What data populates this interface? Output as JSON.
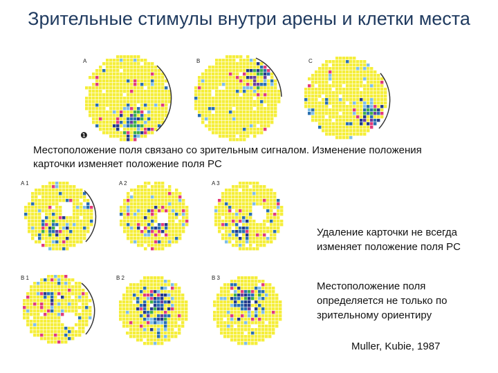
{
  "title": "Зрительные стимулы внутри арены и клетки места",
  "caption_top": "Местоположение поля связано со зрительным сигналом. Изменение положения карточки изменяет положение поля PC",
  "caption_removal": "Удаление карточки не всегда изменяет положение поля  PC",
  "caption_landmark": "Местоположение поля определяется не только по зрительному ориентиру",
  "reference": "Muller, Kubie, 1987",
  "colors": {
    "background": "#f5ee3a",
    "firing": [
      "#e23b7a",
      "#7fbfe8",
      "#2a6fb0",
      "#233a8a",
      "#3fae4a",
      "#6a3f9a"
    ],
    "empty": "#ffffff",
    "cue_card": "#333333"
  },
  "top_row": [
    {
      "label": "A",
      "marker": "❶"
    },
    {
      "label": "B"
    },
    {
      "label": "C"
    }
  ],
  "grid": [
    {
      "label": "A 1"
    },
    {
      "label": "A 2"
    },
    {
      "label": "A 3"
    },
    {
      "label": "B 1"
    },
    {
      "label": "B 2"
    },
    {
      "label": "B 3"
    }
  ]
}
